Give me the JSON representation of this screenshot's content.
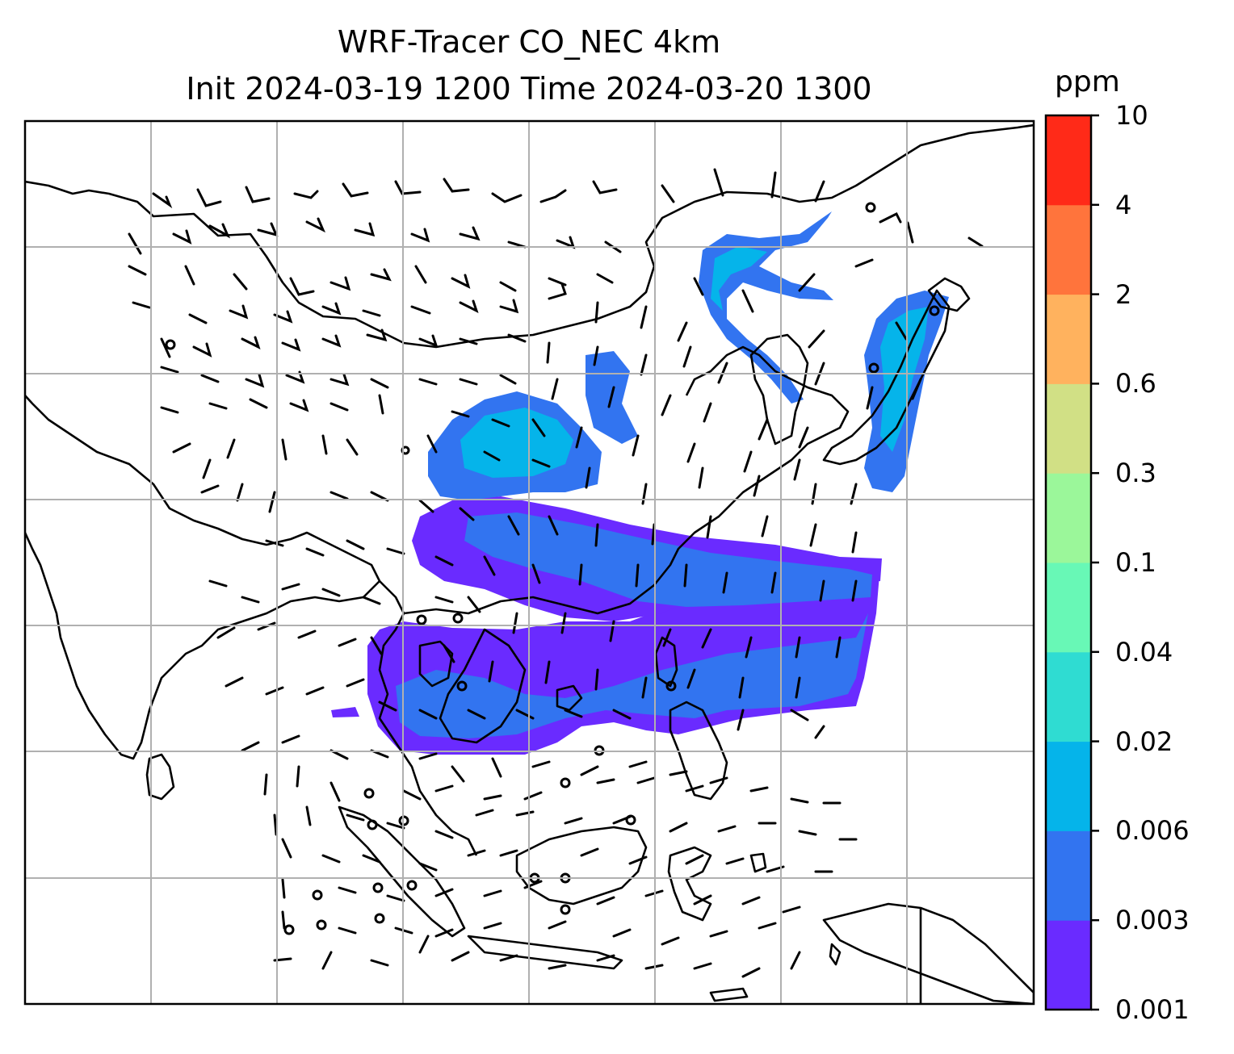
{
  "title": {
    "line1": "WRF-Tracer CO_NEC 4km",
    "line2": "Init 2024-03-19 1200 Time 2024-03-20 1300"
  },
  "colorbar": {
    "unit": "ppm",
    "levels": [
      "0.001",
      "0.003",
      "0.006",
      "0.02",
      "0.04",
      "0.1",
      "0.3",
      "0.6",
      "2",
      "4",
      "10"
    ],
    "colors": [
      "#6a2bff",
      "#3274f0",
      "#05b4ea",
      "#2fdcd2",
      "#68f8b6",
      "#9bf79a",
      "#d1e085",
      "#ffb25e",
      "#ff743c",
      "#ff2a18"
    ]
  },
  "map": {
    "gridlines": "on",
    "grid_color": "#b0b0b0",
    "coastline_color": "#000000",
    "barb_color": "#000000",
    "background": "#ffffff"
  }
}
